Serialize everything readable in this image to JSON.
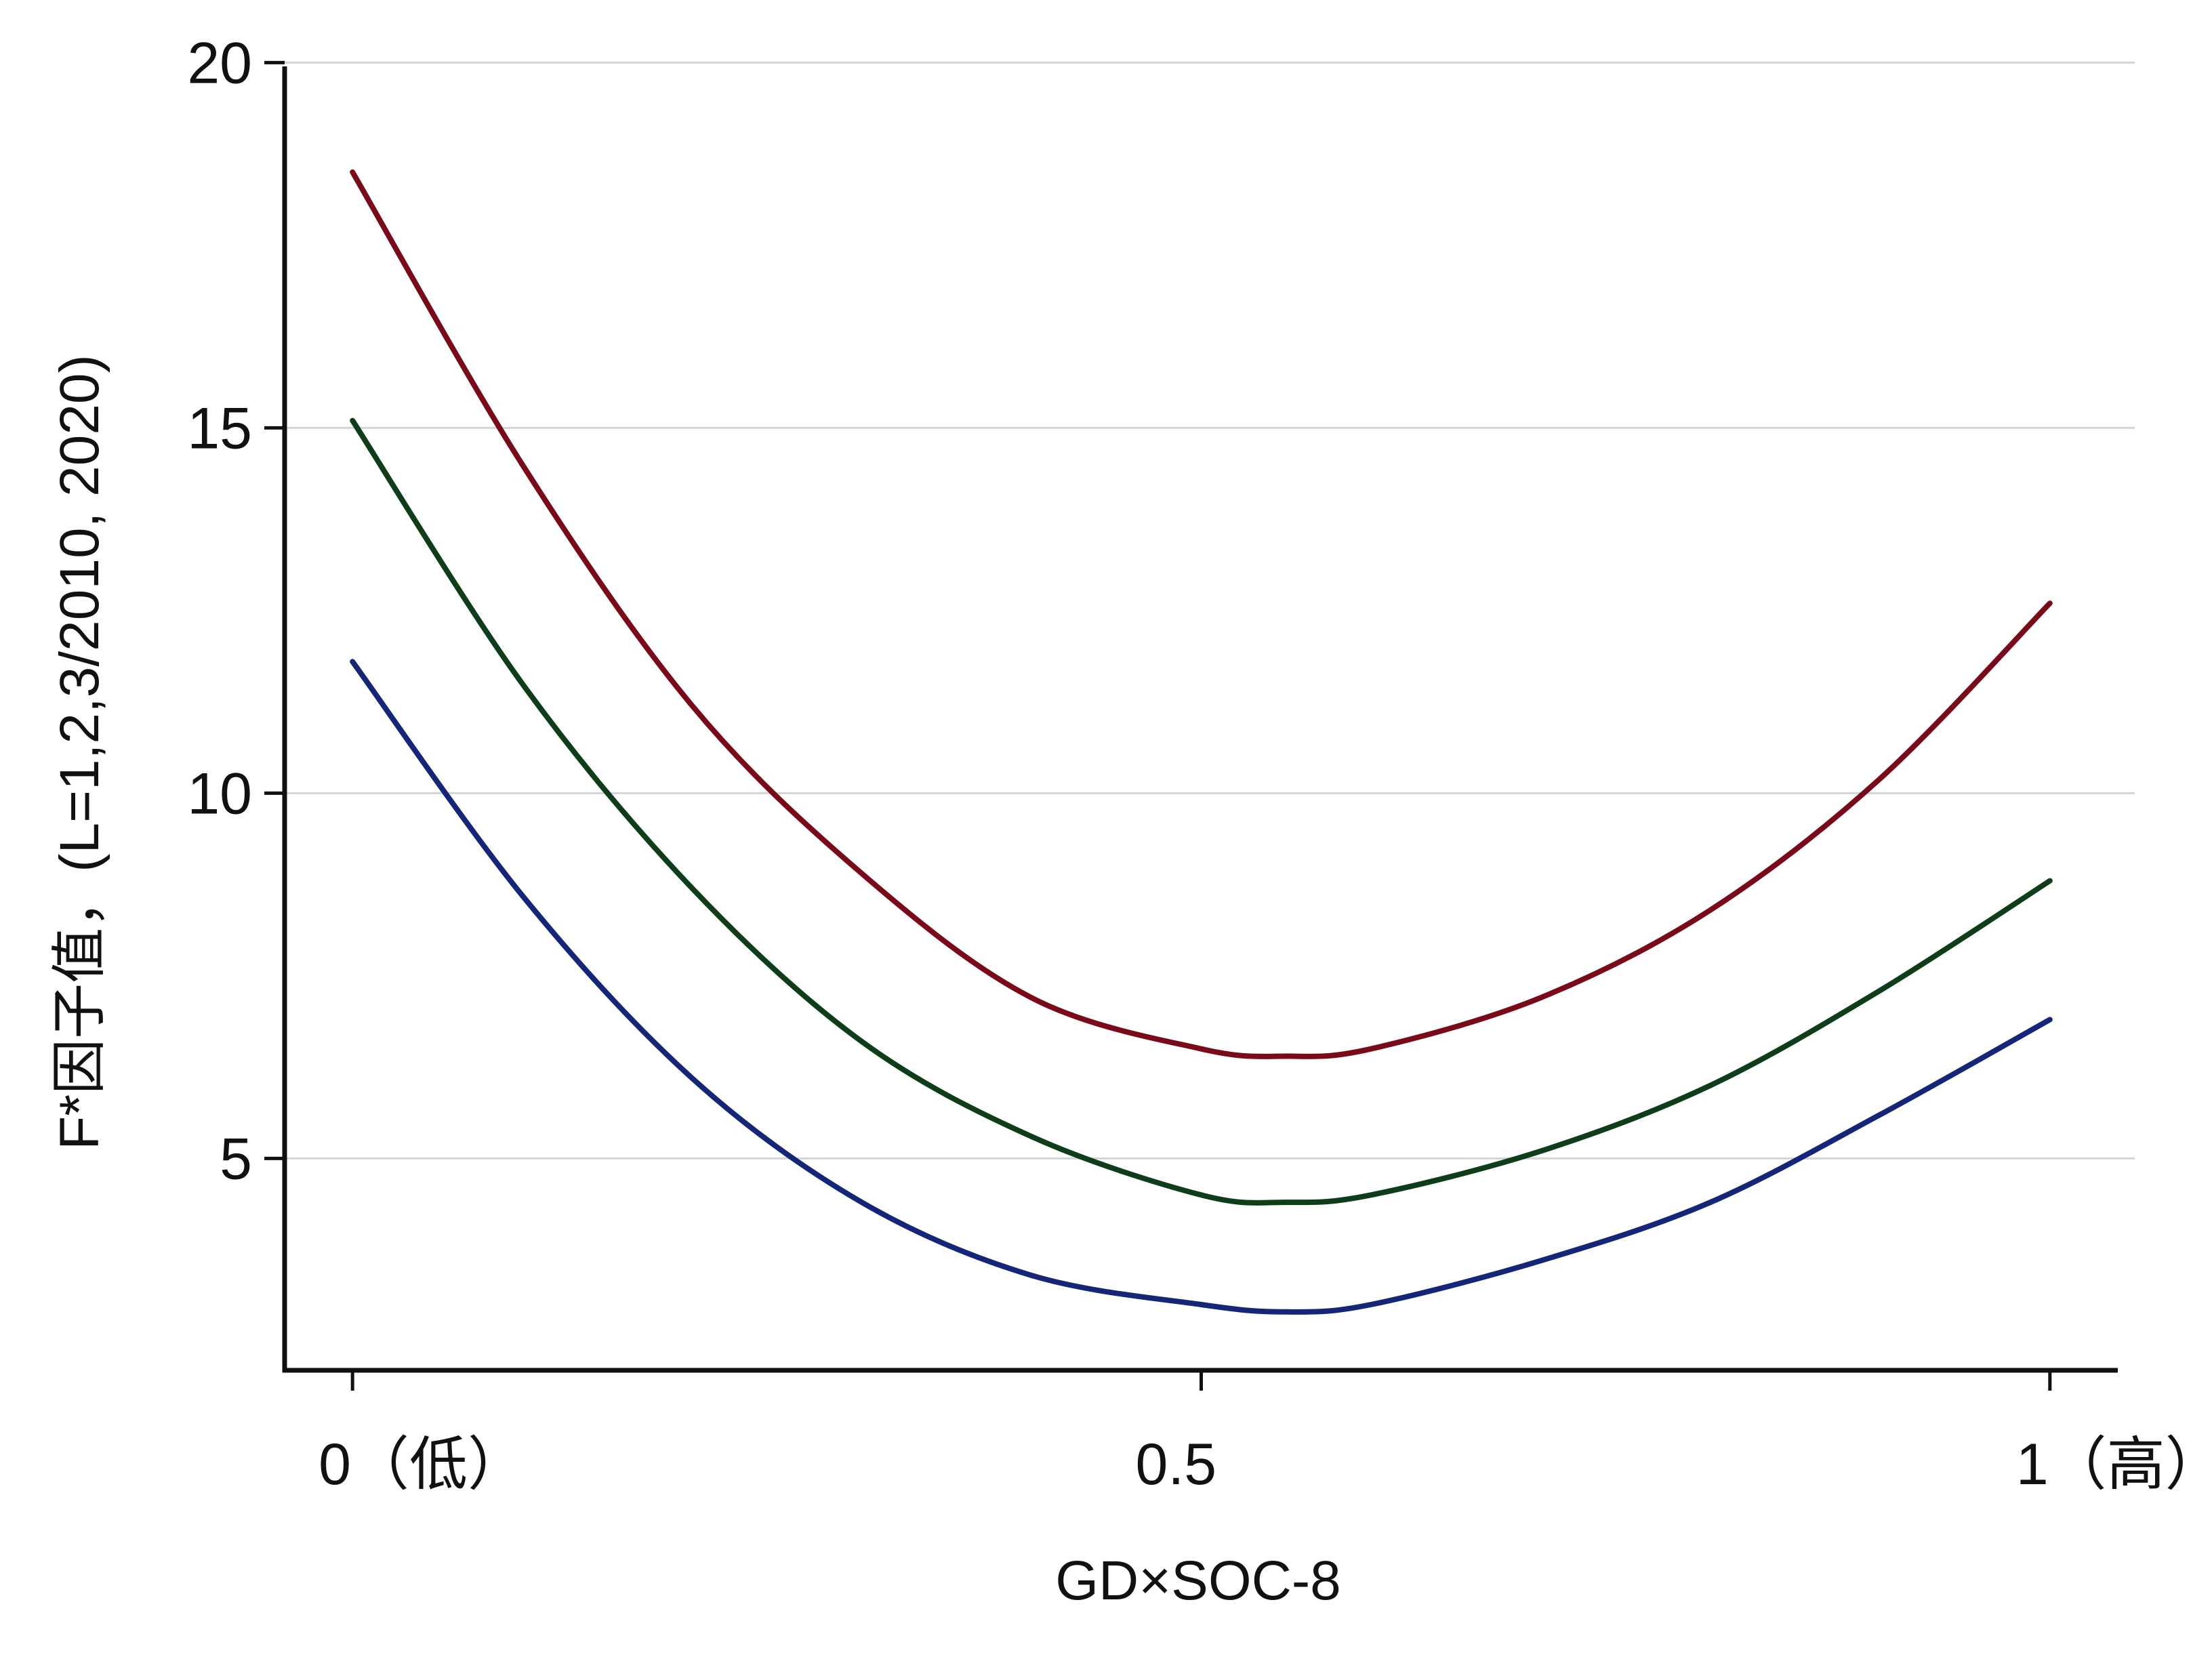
{
  "chart_data": {
    "type": "line",
    "title": "",
    "xlabel": "GD×SOC-8",
    "ylabel": "F*因子值，(L=1,2,3/2010, 2020)",
    "xlim": [
      -0.04,
      1.04
    ],
    "ylim": [
      2.1,
      20.3
    ],
    "x_ticks": [
      {
        "value": 0,
        "label": "0（低）"
      },
      {
        "value": 0.5,
        "label": "0.5"
      },
      {
        "value": 1,
        "label": "1（高）"
      }
    ],
    "y_ticks": [
      {
        "value": 5,
        "label": "5"
      },
      {
        "value": 10,
        "label": "10"
      },
      {
        "value": 15,
        "label": "15"
      },
      {
        "value": 20,
        "label": "20"
      }
    ],
    "grid": "horizontal",
    "legend": "none",
    "series": [
      {
        "color": "#7a0a1a",
        "x": [
          0,
          0.1,
          0.2,
          0.3,
          0.4,
          0.5,
          0.55,
          0.6,
          0.7,
          0.8,
          0.9,
          1.0
        ],
        "y": [
          18.5,
          14.5,
          11.2,
          8.9,
          7.2,
          6.5,
          6.4,
          6.5,
          7.2,
          8.4,
          10.2,
          12.6
        ]
      },
      {
        "color": "#0e3d1a",
        "x": [
          0,
          0.1,
          0.2,
          0.3,
          0.4,
          0.5,
          0.55,
          0.6,
          0.7,
          0.8,
          0.9,
          1.0
        ],
        "y": [
          15.1,
          11.5,
          8.7,
          6.6,
          5.3,
          4.5,
          4.4,
          4.5,
          5.1,
          6.0,
          7.3,
          8.8
        ]
      },
      {
        "color": "#152679",
        "x": [
          0,
          0.1,
          0.2,
          0.3,
          0.4,
          0.5,
          0.55,
          0.6,
          0.7,
          0.8,
          0.9,
          1.0
        ],
        "y": [
          11.8,
          8.6,
          6.1,
          4.4,
          3.4,
          3.0,
          2.9,
          3.0,
          3.6,
          4.4,
          5.6,
          6.9
        ]
      }
    ]
  }
}
